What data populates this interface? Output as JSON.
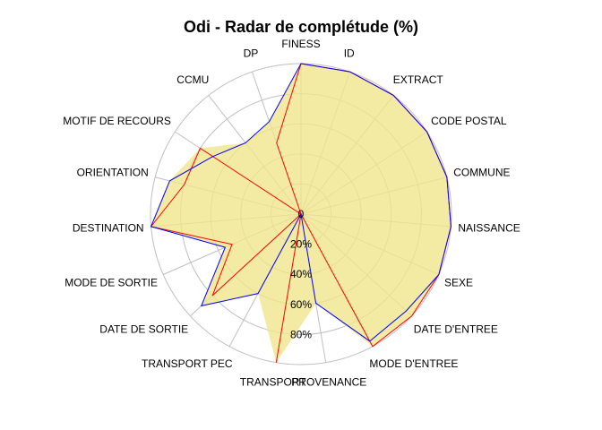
{
  "chart_data": {
    "type": "radar",
    "title": "Odi - Radar de complétude (%)",
    "axes": [
      "FINESS",
      "ID",
      "EXTRACT",
      "CODE POSTAL",
      "COMMUNE",
      "NAISSANCE",
      "SEXE",
      "DATE D'ENTREE",
      "MODE D'ENTREE",
      "PROVENANCE",
      "TRANSPORT",
      "TRANSPORT PEC",
      "DATE DE SORTIE",
      "MODE DE SORTIE",
      "DESTINATION",
      "ORIENTATION",
      "MOTIF DE RECOURS",
      "CCMU",
      "DP"
    ],
    "rmax": 100,
    "ring_labels": [
      "0",
      "20%",
      "40%",
      "60%",
      "80%"
    ],
    "ring_values": [
      0,
      20,
      40,
      60,
      80,
      100
    ],
    "series": [
      {
        "color": "#ff0000",
        "values": [
          100,
          100,
          100,
          100,
          100,
          100,
          100,
          100,
          100,
          0,
          100,
          0,
          80,
          50,
          100,
          80,
          80,
          0,
          50
        ]
      },
      {
        "color": "#0000ff",
        "values": [
          100,
          100,
          100,
          100,
          100,
          100,
          100,
          95,
          96,
          60,
          0,
          60,
          90,
          55,
          100,
          90,
          70,
          60,
          65
        ]
      }
    ],
    "fill_color": "#f0e68c"
  }
}
